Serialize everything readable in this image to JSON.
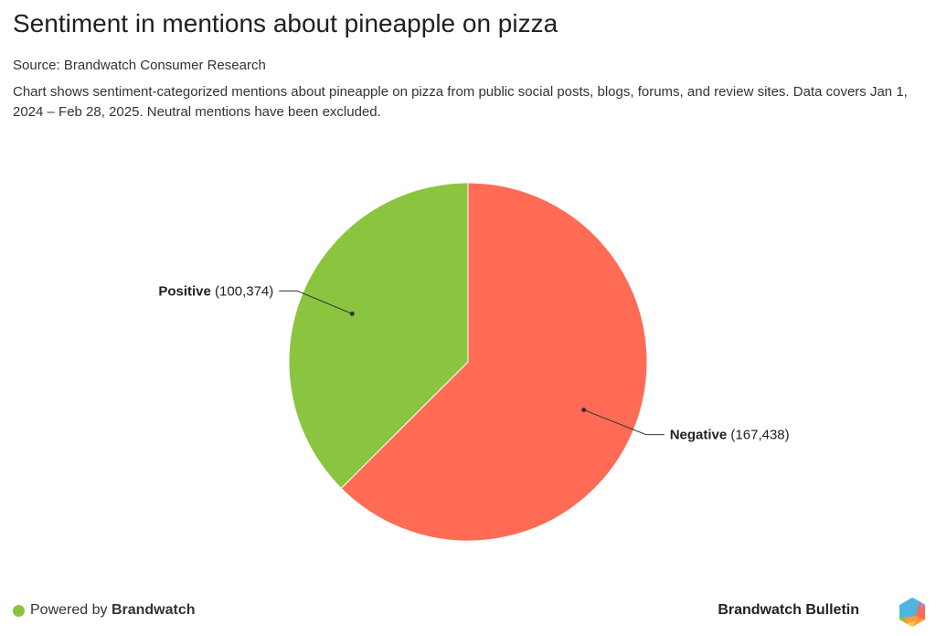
{
  "title": "Sentiment in mentions about pineapple on pizza",
  "source": "Source: Brandwatch Consumer Research",
  "description": "Chart shows sentiment-categorized mentions about pineapple on pizza from public social posts, blogs, forums, and review sites. Data covers Jan 1, 2024 – Feb 28, 2025. Neutral mentions have been excluded.",
  "chart_data": {
    "type": "pie",
    "title": "Sentiment in mentions about pineapple on pizza",
    "slices": [
      {
        "label": "Negative",
        "value": 167438,
        "value_text": "(167,438)",
        "color": "#ff6b55"
      },
      {
        "label": "Positive",
        "value": 100374,
        "value_text": "(100,374)",
        "color": "#8bc53f"
      }
    ]
  },
  "footer": {
    "powered_prefix": "Powered by",
    "powered_brand": "Brandwatch",
    "brand": "Brandwatch Bulletin"
  }
}
